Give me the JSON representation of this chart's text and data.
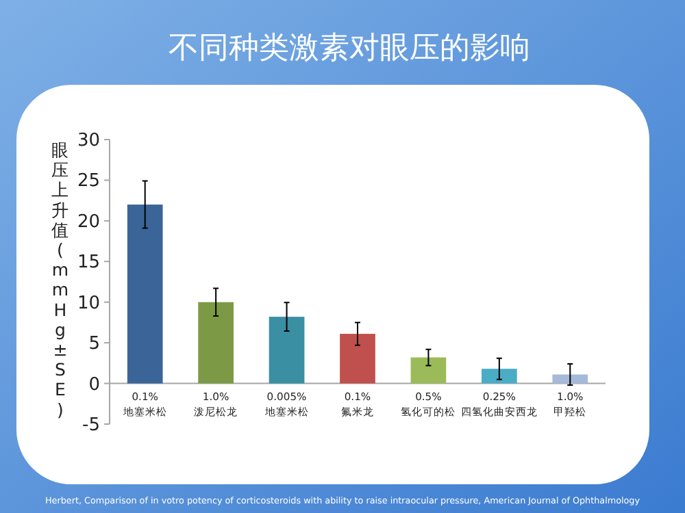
{
  "chart_data": {
    "type": "bar",
    "title": "不同种类激素对眼压的影响",
    "ylabel": "眼压上升值(mmHg±SE)",
    "categories": [
      "0.1% 地塞米松",
      "1.0% 泼尼松龙",
      "0.005% 地塞米松",
      "0.1% 氟米龙",
      "0.5% 氢化可的松",
      "0.25% 四氢化曲安西龙",
      "1.0% 甲羟松"
    ],
    "values": [
      22,
      10,
      8.2,
      6.1,
      3.2,
      1.8,
      1.1
    ],
    "errors": [
      2.9,
      1.7,
      1.75,
      1.4,
      1,
      1.3,
      1.3
    ],
    "colors": [
      "#3b6599",
      "#7c9a45",
      "#3a8fa3",
      "#c0504d",
      "#9bbb59",
      "#4bacc6",
      "#a5b9d9"
    ],
    "ylim": [
      -5,
      30
    ],
    "yticks": [
      -5,
      0,
      5,
      10,
      15,
      20,
      25,
      30
    ],
    "grid": false,
    "annotations": [
      "Herbert, Comparison of in votro potency of corticosteroids with ability to raise intraocular pressure, American Journal of Ophthalmology"
    ]
  }
}
